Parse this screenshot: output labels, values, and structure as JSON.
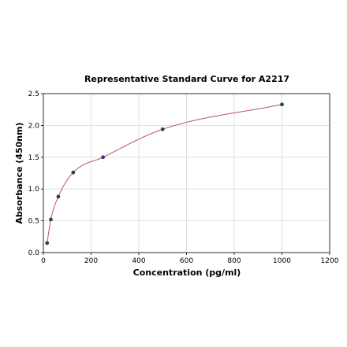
{
  "chart_data": {
    "type": "scatter",
    "title": "Representative Standard Curve for A2217",
    "xlabel": "Concentration (pg/ml)",
    "ylabel": "Absorbance (450nm)",
    "xlim": [
      0,
      1200
    ],
    "ylim": [
      0,
      2.5
    ],
    "xticks": [
      0,
      200,
      400,
      600,
      800,
      1000,
      1200
    ],
    "yticks": [
      0.0,
      0.5,
      1.0,
      1.5,
      2.0,
      2.5
    ],
    "yticklabels": [
      "0.0",
      "0.5",
      "1.0",
      "1.5",
      "2.0",
      "2.5"
    ],
    "grid": true,
    "series": [
      {
        "x": [
          15.6,
          31.25,
          62.5,
          125,
          250,
          500,
          1000
        ],
        "y": [
          0.15,
          0.52,
          0.88,
          1.26,
          1.5,
          1.94,
          2.33
        ]
      }
    ],
    "colors": {
      "curve": "#c0506a",
      "points": "#2c3e6b",
      "grid": "#d9d9d9"
    }
  }
}
